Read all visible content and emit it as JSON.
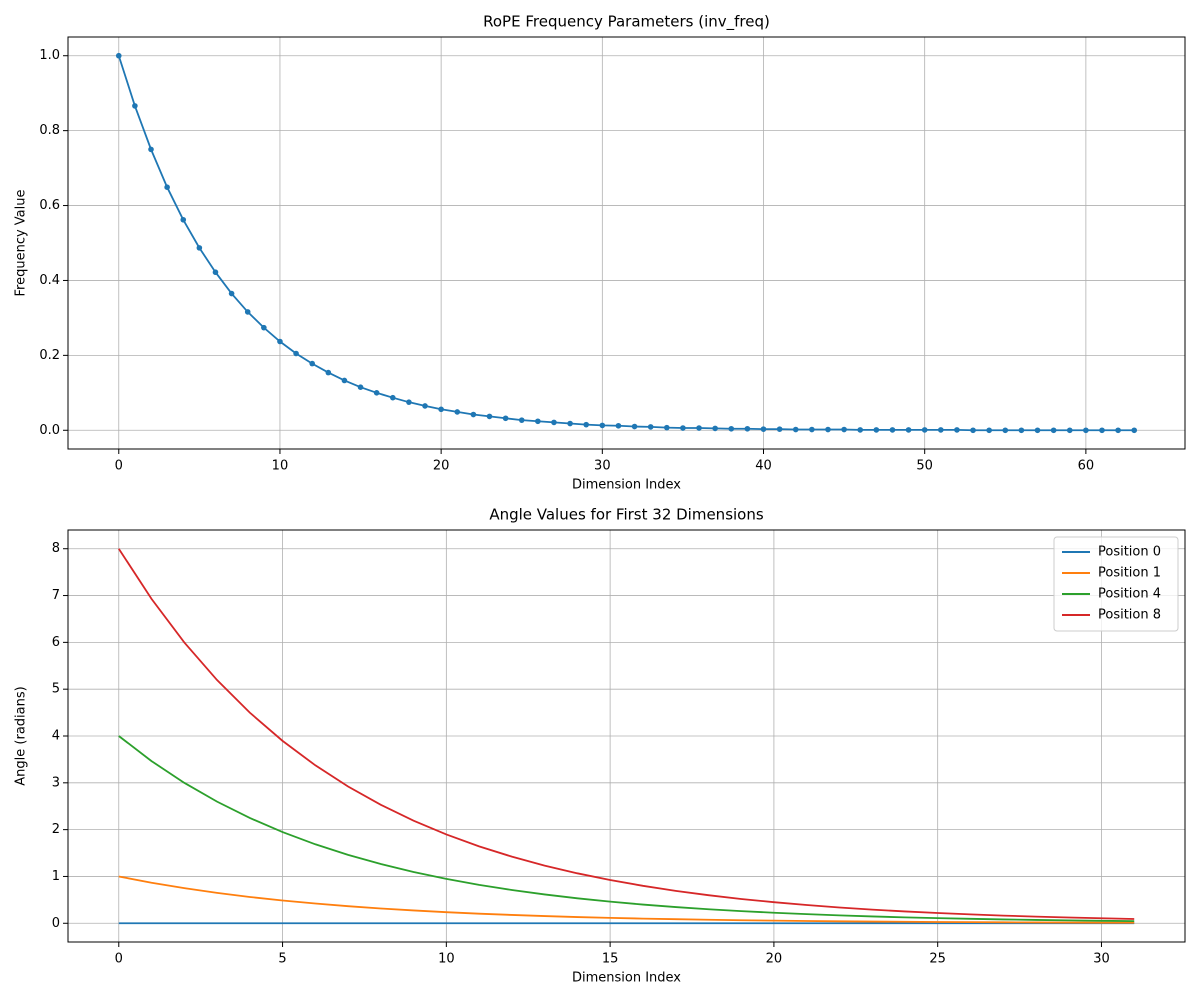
{
  "chart_data": [
    {
      "type": "line",
      "title": "RoPE Frequency Parameters (inv_freq)",
      "xlabel": "Dimension Index",
      "ylabel": "Frequency Value",
      "x": [
        0,
        1,
        2,
        3,
        4,
        5,
        6,
        7,
        8,
        9,
        10,
        11,
        12,
        13,
        14,
        15,
        16,
        17,
        18,
        19,
        20,
        21,
        22,
        23,
        24,
        25,
        26,
        27,
        28,
        29,
        30,
        31,
        32,
        33,
        34,
        35,
        36,
        37,
        38,
        39,
        40,
        41,
        42,
        43,
        44,
        45,
        46,
        47,
        48,
        49,
        50,
        51,
        52,
        53,
        54,
        55,
        56,
        57,
        58,
        59,
        60,
        61,
        62,
        63
      ],
      "series": [
        {
          "color": "#1f77b4",
          "marker": "o",
          "values": [
            1.0,
            0.866,
            0.75,
            0.649,
            0.562,
            0.487,
            0.422,
            0.365,
            0.316,
            0.274,
            0.237,
            0.205,
            0.178,
            0.154,
            0.133,
            0.115,
            0.1,
            0.087,
            0.075,
            0.065,
            0.056,
            0.049,
            0.042,
            0.037,
            0.032,
            0.027,
            0.024,
            0.021,
            0.018,
            0.015,
            0.013,
            0.012,
            0.01,
            0.009,
            0.007,
            0.006,
            0.006,
            0.005,
            0.004,
            0.004,
            0.003,
            0.003,
            0.002,
            0.002,
            0.002,
            0.002,
            0.001,
            0.001,
            0.001,
            0.001,
            0.001,
            0.001,
            0.001,
            0,
            0,
            0,
            0,
            0,
            0,
            0,
            0,
            0,
            0,
            0
          ]
        }
      ],
      "xlim": [
        -3.15,
        66.15
      ],
      "xticks": [
        0,
        10,
        20,
        30,
        40,
        50,
        60
      ],
      "ylim": [
        -0.05,
        1.05
      ],
      "yticks": [
        {
          "value": 0,
          "label": "0.0"
        },
        {
          "value": 0.2,
          "label": "0.2"
        },
        {
          "value": 0.4,
          "label": "0.4"
        },
        {
          "value": 0.6,
          "label": "0.6"
        },
        {
          "value": 0.8,
          "label": "0.8"
        },
        {
          "value": 1,
          "label": "1.0"
        }
      ],
      "grid": true
    },
    {
      "type": "line",
      "title": "Angle Values for First 32 Dimensions",
      "xlabel": "Dimension Index",
      "ylabel": "Angle (radians)",
      "x": [
        0,
        1,
        2,
        3,
        4,
        5,
        6,
        7,
        8,
        9,
        10,
        11,
        12,
        13,
        14,
        15,
        16,
        17,
        18,
        19,
        20,
        21,
        22,
        23,
        24,
        25,
        26,
        27,
        28,
        29,
        30,
        31
      ],
      "series": [
        {
          "name": "Position 0",
          "color": "#1f77b4",
          "values": [
            0,
            0,
            0,
            0,
            0,
            0,
            0,
            0,
            0,
            0,
            0,
            0,
            0,
            0,
            0,
            0,
            0,
            0,
            0,
            0,
            0,
            0,
            0,
            0,
            0,
            0,
            0,
            0,
            0,
            0,
            0,
            0
          ]
        },
        {
          "name": "Position 1",
          "color": "#ff7f0e",
          "values": [
            1,
            0.866,
            0.75,
            0.649,
            0.562,
            0.487,
            0.422,
            0.365,
            0.316,
            0.274,
            0.237,
            0.205,
            0.178,
            0.154,
            0.133,
            0.115,
            0.1,
            0.087,
            0.075,
            0.065,
            0.056,
            0.049,
            0.042,
            0.037,
            0.032,
            0.027,
            0.024,
            0.021,
            0.018,
            0.015,
            0.013,
            0.012
          ]
        },
        {
          "name": "Position 4",
          "color": "#2ca02c",
          "values": [
            4,
            3.464,
            3.0,
            2.598,
            2.249,
            1.948,
            1.687,
            1.461,
            1.265,
            1.095,
            0.949,
            0.821,
            0.711,
            0.616,
            0.533,
            0.462,
            0.4,
            0.346,
            0.3,
            0.26,
            0.225,
            0.195,
            0.169,
            0.146,
            0.126,
            0.11,
            0.095,
            0.082,
            0.071,
            0.062,
            0.053,
            0.046
          ]
        },
        {
          "name": "Position 8",
          "color": "#d62728",
          "values": [
            8,
            6.928,
            5.999,
            5.195,
            4.499,
            3.896,
            3.374,
            2.921,
            2.53,
            2.191,
            1.897,
            1.643,
            1.423,
            1.232,
            1.067,
            0.924,
            0.8,
            0.693,
            0.6,
            0.519,
            0.45,
            0.39,
            0.337,
            0.292,
            0.253,
            0.219,
            0.19,
            0.164,
            0.142,
            0.123,
            0.107,
            0.092
          ]
        }
      ],
      "xlim": [
        -1.55,
        32.55
      ],
      "xticks": [
        0,
        5,
        10,
        15,
        20,
        25,
        30
      ],
      "ylim": [
        -0.4,
        8.4
      ],
      "yticks": [
        0,
        1,
        2,
        3,
        4,
        5,
        6,
        7,
        8
      ],
      "grid": true,
      "legend": "upper right"
    }
  ]
}
